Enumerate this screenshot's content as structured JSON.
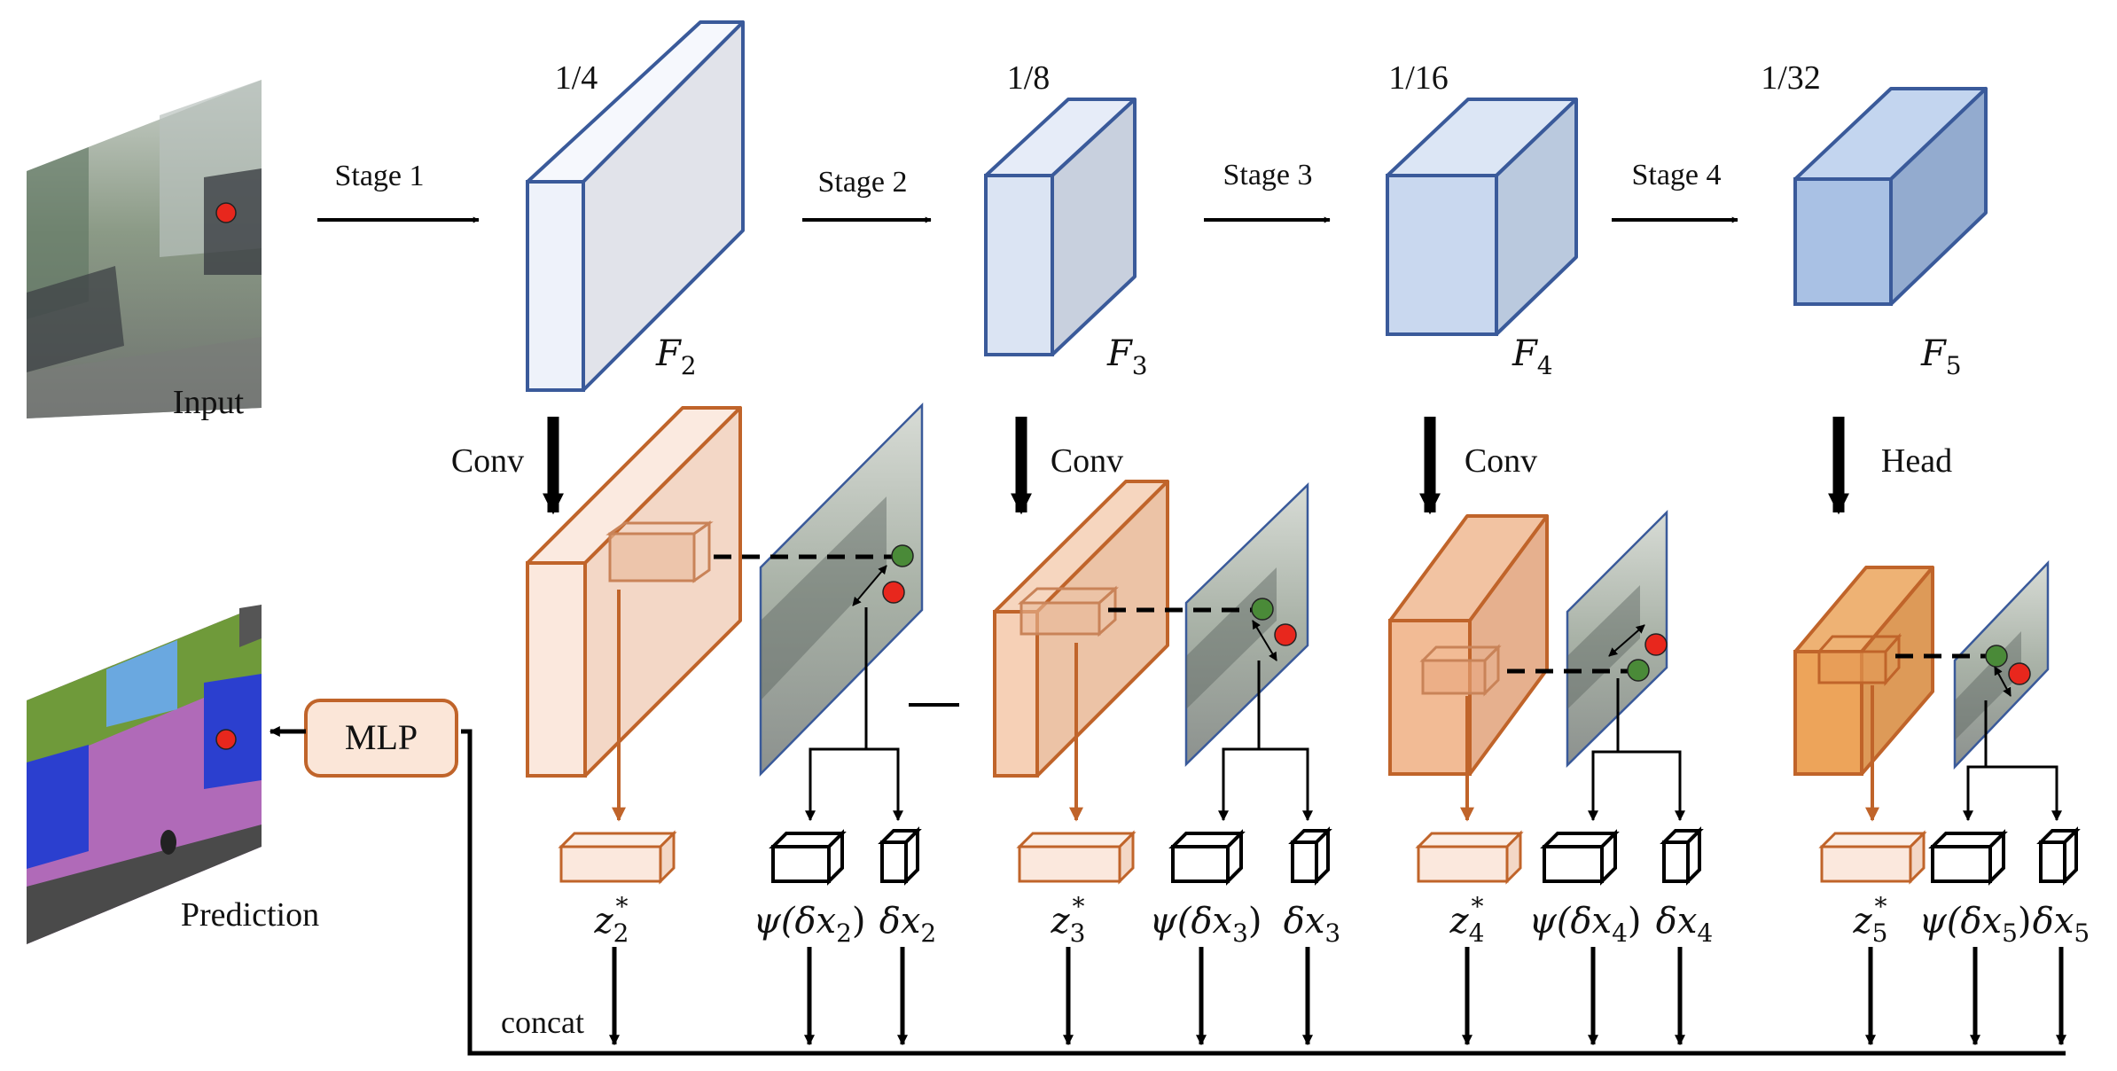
{
  "input": {
    "label": "Input"
  },
  "prediction": {
    "label": "Prediction"
  },
  "stages": [
    {
      "arrow_label": "Stage 1",
      "scale": "1/4",
      "feature": "F",
      "sub": "2"
    },
    {
      "arrow_label": "Stage 2",
      "scale": "1/8",
      "feature": "F",
      "sub": "3"
    },
    {
      "arrow_label": "Stage 3",
      "scale": "1/16",
      "feature": "F",
      "sub": "4"
    },
    {
      "arrow_label": "Stage 4",
      "scale": "1/32",
      "feature": "F",
      "sub": "5"
    }
  ],
  "ops": [
    "Conv",
    "Conv",
    "Conv",
    "Head"
  ],
  "branches": [
    {
      "z_label": "z",
      "z_sub": "2",
      "z_sup": "*",
      "psi_label": "ψ(δx",
      "psi_sub": "2",
      "psi_close": ")",
      "dx_label": "δx",
      "dx_sub": "2"
    },
    {
      "z_label": "z",
      "z_sub": "3",
      "z_sup": "*",
      "psi_label": "ψ(δx",
      "psi_sub": "3",
      "psi_close": ")",
      "dx_label": "δx",
      "dx_sub": "3"
    },
    {
      "z_label": "z",
      "z_sub": "4",
      "z_sup": "*",
      "psi_label": "ψ(δx",
      "psi_sub": "4",
      "psi_close": ")",
      "dx_label": "δx",
      "dx_sub": "4"
    },
    {
      "z_label": "z",
      "z_sub": "5",
      "z_sup": "*",
      "psi_label": "ψ(δx",
      "psi_sub": "5",
      "psi_close": ")",
      "dx_label": "δx",
      "dx_sub": "5"
    }
  ],
  "mlp": {
    "label": "MLP"
  },
  "concat": {
    "label": "concat"
  },
  "colors": {
    "feature_stroke": "#3a5a9a",
    "feature_fills": [
      "#eef2fa",
      "#dbe4f3",
      "#c9d8ef",
      "#a9c1e4"
    ],
    "branch_stroke": "#c0642a",
    "branch_fills": [
      "#fbe8dd",
      "#f6d0b6",
      "#f2bb95",
      "#eda45a"
    ],
    "red_point": "#e8271d",
    "green_point": "#4a8a38",
    "mlp_fill": "#fbe6d8"
  }
}
